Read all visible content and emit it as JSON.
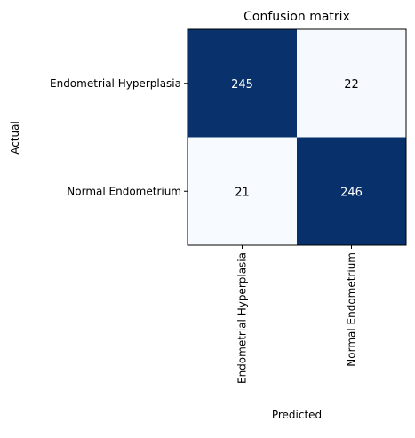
{
  "chart_data": {
    "type": "heatmap",
    "title": "Confusion matrix",
    "xlabel": "Predicted",
    "ylabel": "Actual",
    "x_categories": [
      "Endometrial Hyperplasia",
      "Normal Endometrium"
    ],
    "y_categories": [
      "Endometrial Hyperplasia",
      "Normal Endometrium"
    ],
    "values": [
      [
        245,
        22
      ],
      [
        21,
        246
      ]
    ],
    "colormap": "Blues",
    "colors": {
      "low": "#f7fbff",
      "high": "#08306b",
      "text_on_dark": "#ffffff",
      "text_on_light": "#000000"
    },
    "legend": "none",
    "grid": false
  }
}
